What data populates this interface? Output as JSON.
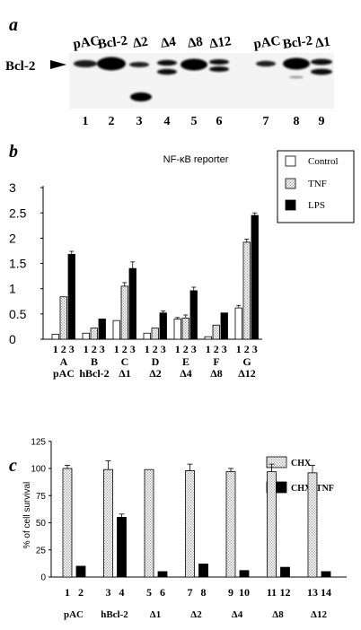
{
  "panel_a": {
    "label": "a",
    "row_label": "Bcl-2",
    "lanes": [
      {
        "top": "pAC",
        "num": "1"
      },
      {
        "top": "Bcl-2",
        "num": "2"
      },
      {
        "top": "Δ2",
        "num": "3"
      },
      {
        "top": "Δ4",
        "num": "4"
      },
      {
        "top": "Δ8",
        "num": "5"
      },
      {
        "top": "Δ12",
        "num": "6"
      },
      {
        "top": "pAC",
        "num": "7"
      },
      {
        "top": "Bcl-2",
        "num": "8"
      },
      {
        "top": "Δ1",
        "num": "9"
      }
    ]
  },
  "panel_b": {
    "label": "b",
    "title": "NF-κB reporter",
    "legend": [
      "Control",
      "TNF",
      "LPS"
    ],
    "groups": [
      {
        "letter": "A",
        "name": "pAC"
      },
      {
        "letter": "B",
        "name": "hBcl-2"
      },
      {
        "letter": "C",
        "name": "Δ1"
      },
      {
        "letter": "D",
        "name": "Δ2"
      },
      {
        "letter": "E",
        "name": "Δ4"
      },
      {
        "letter": "F",
        "name": "Δ8"
      },
      {
        "letter": "G",
        "name": "Δ12"
      }
    ],
    "bar_numbers": [
      "1",
      "2",
      "3"
    ]
  },
  "panel_c": {
    "label": "c",
    "ylabel": "% of cell survival",
    "legend": [
      "CHX",
      "CHX+TNF"
    ],
    "groups": [
      {
        "name": "pAC",
        "nums": [
          "1",
          "2"
        ]
      },
      {
        "name": "hBcl-2",
        "nums": [
          "3",
          "4"
        ]
      },
      {
        "name": "Δ1",
        "nums": [
          "5",
          "6"
        ]
      },
      {
        "name": "Δ2",
        "nums": [
          "7",
          "8"
        ]
      },
      {
        "name": "Δ4",
        "nums": [
          "9",
          "10"
        ]
      },
      {
        "name": "Δ8",
        "nums": [
          "11",
          "12"
        ]
      },
      {
        "name": "Δ12",
        "nums": [
          "13",
          "14"
        ]
      }
    ]
  },
  "chart_data": [
    {
      "type": "bar",
      "title": "NF-κB reporter",
      "categories": [
        "pAC",
        "hBcl-2",
        "Δ1",
        "Δ2",
        "Δ4",
        "Δ8",
        "Δ12"
      ],
      "series": [
        {
          "name": "Control",
          "values": [
            0.1,
            0.12,
            0.37,
            0.12,
            0.4,
            0.05,
            0.62
          ],
          "errors": [
            0,
            0,
            0,
            0,
            0.03,
            0,
            0.05
          ]
        },
        {
          "name": "TNF",
          "values": [
            0.84,
            0.22,
            1.05,
            0.22,
            0.42,
            0.28,
            1.92
          ],
          "errors": [
            0,
            0,
            0.07,
            0,
            0.06,
            0,
            0.06
          ]
        },
        {
          "name": "LPS",
          "values": [
            1.68,
            0.4,
            1.4,
            0.52,
            0.96,
            0.52,
            2.45
          ],
          "errors": [
            0.06,
            0,
            0.13,
            0.04,
            0.07,
            0,
            0.05
          ]
        }
      ],
      "yticks": [
        "0",
        "0.5",
        "1",
        "1.5",
        "2",
        "2.5",
        "3"
      ],
      "ylim": [
        0,
        3
      ],
      "legend_position": "top-right"
    },
    {
      "type": "bar",
      "categories": [
        "pAC",
        "hBcl-2",
        "Δ1",
        "Δ2",
        "Δ4",
        "Δ8",
        "Δ12"
      ],
      "ylabel": "% of cell survival",
      "series": [
        {
          "name": "CHX",
          "values": [
            100,
            99,
            99,
            98,
            97,
            97,
            96
          ],
          "errors": [
            3,
            8,
            0,
            6,
            3,
            7,
            7
          ]
        },
        {
          "name": "CHX+TNF",
          "values": [
            10,
            55,
            5,
            12,
            6,
            9,
            5
          ],
          "errors": [
            0,
            3,
            0,
            0,
            0,
            0,
            0
          ]
        }
      ],
      "yticks": [
        "0",
        "25",
        "50",
        "75",
        "100",
        "125"
      ],
      "ylim": [
        0,
        125
      ],
      "legend_position": "top-right"
    }
  ]
}
